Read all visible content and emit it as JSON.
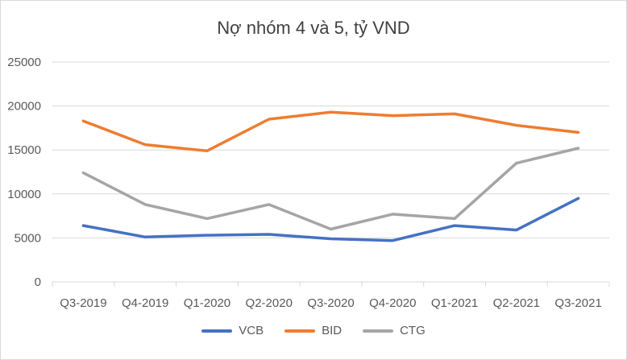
{
  "chart_data": {
    "type": "line",
    "title": "Nợ nhóm 4 và 5, tỷ VND",
    "xlabel": "",
    "ylabel": "",
    "categories": [
      "Q3-2019",
      "Q4-2019",
      "Q1-2020",
      "Q2-2020",
      "Q3-2020",
      "Q4-2020",
      "Q1-2021",
      "Q2-2021",
      "Q3-2021"
    ],
    "ylim": [
      0,
      25000
    ],
    "yticks": [
      "0",
      "5000",
      "10000",
      "15000",
      "20000",
      "25000"
    ],
    "grid": true,
    "legend_position": "bottom",
    "series": [
      {
        "name": "VCB",
        "color": "#4472c4",
        "values": [
          6400,
          5100,
          5300,
          5400,
          4900,
          4700,
          6400,
          5900,
          9500
        ]
      },
      {
        "name": "BID",
        "color": "#ed7d31",
        "values": [
          18300,
          15600,
          14900,
          18500,
          19300,
          18900,
          19100,
          17800,
          17000
        ]
      },
      {
        "name": "CTG",
        "color": "#a5a5a5",
        "values": [
          12400,
          8800,
          7200,
          8800,
          6000,
          7700,
          7200,
          13500,
          15200
        ]
      }
    ]
  }
}
